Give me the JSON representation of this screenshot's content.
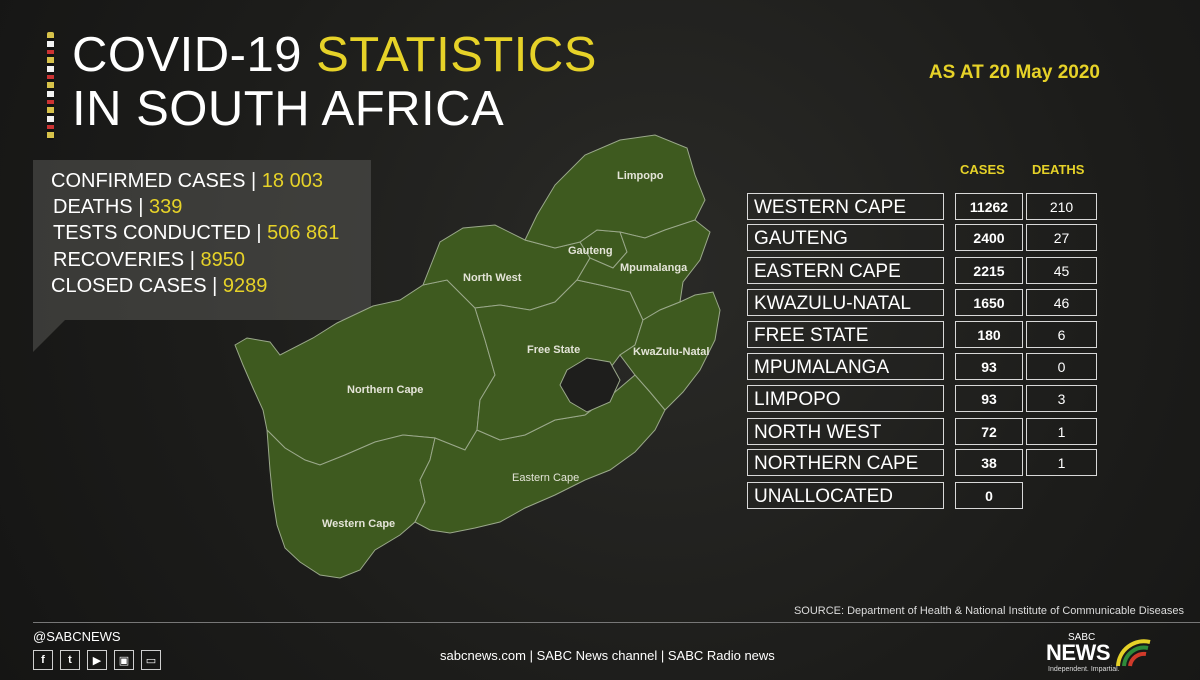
{
  "header": {
    "title_line1_plain": "COVID-19 ",
    "title_line1_highlight": "STATISTICS",
    "title_line2": "IN SOUTH AFRICA",
    "date": "AS AT 20 May 2020"
  },
  "summary": {
    "confirmed_label": "CONFIRMED CASES | ",
    "confirmed_value": "18 003",
    "deaths_label": "DEATHS | ",
    "deaths_value": "339",
    "tests_label": "TESTS CONDUCTED |  ",
    "tests_value": "506 861",
    "recoveries_label": "RECOVERIES | ",
    "recoveries_value": "8950",
    "closed_label": "CLOSED CASES | ",
    "closed_value": "9289"
  },
  "map_labels": {
    "limpopo": "Limpopo",
    "gauteng": "Gauteng",
    "mpumalanga": "Mpumalanga",
    "north_west": "North West",
    "free_state": "Free State",
    "kwazulu_natal": "KwaZulu-Natal",
    "northern_cape": "Northern Cape",
    "eastern_cape": "Eastern Cape",
    "western_cape": "Western Cape"
  },
  "table": {
    "cases_header": "CASES",
    "deaths_header": "DEATHS",
    "rows": [
      {
        "province": "WESTERN CAPE",
        "cases": "11262",
        "deaths": "210"
      },
      {
        "province": "GAUTENG",
        "cases": "2400",
        "deaths": "27"
      },
      {
        "province": "EASTERN CAPE",
        "cases": "2215",
        "deaths": "45"
      },
      {
        "province": "KWAZULU-NATAL",
        "cases": "1650",
        "deaths": "46"
      },
      {
        "province": "FREE STATE",
        "cases": "180",
        "deaths": "6"
      },
      {
        "province": "MPUMALANGA",
        "cases": "93",
        "deaths": "0"
      },
      {
        "province": "LIMPOPO",
        "cases": "93",
        "deaths": "3"
      },
      {
        "province": "NORTH WEST",
        "cases": "72",
        "deaths": "1"
      },
      {
        "province": "NORTHERN CAPE",
        "cases": "38",
        "deaths": "1"
      },
      {
        "province": "UNALLOCATED",
        "cases": "0",
        "deaths": ""
      }
    ]
  },
  "source": "SOURCE: Department of Health & National Institute of Communicable Diseases",
  "footer": {
    "handle": "@SABCNEWS",
    "links": "sabcnews.com |  SABC News channel | SABC Radio news",
    "logo_top": "SABC",
    "logo_main": "NEWS",
    "logo_tagline": "Independent. Impartial."
  },
  "icons": [
    "facebook-icon",
    "twitter-icon",
    "youtube-icon",
    "radio-icon",
    "tv-icon"
  ],
  "colors": {
    "accent": "#e6d228",
    "map_fill": "#3e5a1f",
    "map_stroke": "#9aa88a",
    "background": "#1e1e1c"
  }
}
